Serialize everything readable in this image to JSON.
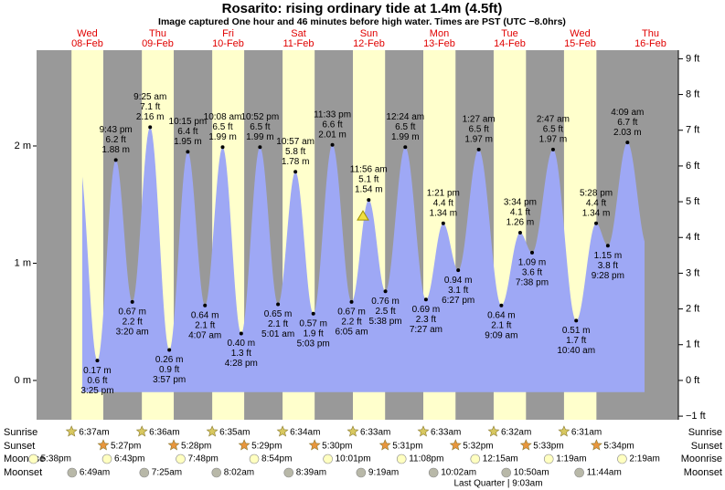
{
  "chart_data": {
    "type": "tide",
    "title": "Rosarito: rising  ordinary tide at 1.4m (4.5ft)",
    "subtitle": "Image captured One hour and 46 minutes before high water. Times are PST (UTC −8.0hrs)",
    "current_m": 1.4,
    "ylim": [
      -0.335,
      2.817
    ],
    "yticks": [
      {
        "value": 0,
        "label": "0 m"
      },
      {
        "value": 1,
        "label": "1 m"
      },
      {
        "value": 2,
        "label": "2 m"
      }
    ],
    "y2lim": [
      -1.1,
      9.24
    ],
    "y2ticks": [
      {
        "value": -1,
        "label": "−1 ft"
      },
      {
        "value": 0,
        "label": "0 ft"
      },
      {
        "value": 1,
        "label": "1 ft"
      },
      {
        "value": 2,
        "label": "2 ft"
      },
      {
        "value": 3,
        "label": "3 ft"
      },
      {
        "value": 4,
        "label": "4 ft"
      },
      {
        "value": 5,
        "label": "5 ft"
      },
      {
        "value": 6,
        "label": "6 ft"
      },
      {
        "value": 7,
        "label": "7 ft"
      },
      {
        "value": 8,
        "label": "8 ft"
      },
      {
        "value": 9,
        "label": "9 ft"
      }
    ],
    "days": [
      {
        "weekday": "Wed",
        "date": "08-Feb",
        "tides": [
          {
            "time": "3:25 pm",
            "height_m": 0.17,
            "label_m": "0.17 m",
            "label_ft": "0.6 ft",
            "kind": "low"
          },
          {
            "time": "9:43 pm",
            "height_m": 1.88,
            "label_m": "1.88 m",
            "label_ft": "6.2 ft",
            "kind": "high"
          }
        ]
      },
      {
        "weekday": "Thu",
        "date": "09-Feb",
        "tides": [
          {
            "time": "3:20 am",
            "height_m": 0.67,
            "label_m": "0.67 m",
            "label_ft": "2.2 ft",
            "kind": "low"
          },
          {
            "time": "9:25 am",
            "height_m": 2.16,
            "label_m": "2.16 m",
            "label_ft": "7.1 ft",
            "kind": "high"
          },
          {
            "time": "3:57 pm",
            "height_m": 0.26,
            "label_m": "0.26 m",
            "label_ft": "0.9 ft",
            "kind": "low"
          },
          {
            "time": "10:15 pm",
            "height_m": 1.95,
            "label_m": "1.95 m",
            "label_ft": "6.4 ft",
            "kind": "high"
          }
        ]
      },
      {
        "weekday": "Fri",
        "date": "10-Feb",
        "tides": [
          {
            "time": "4:07 am",
            "height_m": 0.64,
            "label_m": "0.64 m",
            "label_ft": "2.1 ft",
            "kind": "low"
          },
          {
            "time": "10:08 am",
            "height_m": 1.99,
            "label_m": "1.99 m",
            "label_ft": "6.5 ft",
            "kind": "high"
          },
          {
            "time": "4:28 pm",
            "height_m": 0.4,
            "label_m": "0.40 m",
            "label_ft": "1.3 ft",
            "kind": "low"
          },
          {
            "time": "10:52 pm",
            "height_m": 1.99,
            "label_m": "1.99 m",
            "label_ft": "6.5 ft",
            "kind": "high"
          }
        ]
      },
      {
        "weekday": "Sat",
        "date": "11-Feb",
        "tides": [
          {
            "time": "5:01 am",
            "height_m": 0.65,
            "label_m": "0.65 m",
            "label_ft": "2.1 ft",
            "kind": "low"
          },
          {
            "time": "10:57 am",
            "height_m": 1.78,
            "label_m": "1.78 m",
            "label_ft": "5.8 ft",
            "kind": "high"
          },
          {
            "time": "5:03 pm",
            "height_m": 0.57,
            "label_m": "0.57 m",
            "label_ft": "1.9 ft",
            "kind": "low"
          },
          {
            "time": "11:33 pm",
            "height_m": 2.01,
            "label_m": "2.01 m",
            "label_ft": "6.6 ft",
            "kind": "high"
          }
        ]
      },
      {
        "weekday": "Sun",
        "date": "12-Feb",
        "tides": [
          {
            "time": "6:05 am",
            "height_m": 0.67,
            "label_m": "0.67 m",
            "label_ft": "2.2 ft",
            "kind": "low"
          },
          {
            "time": "11:56 am",
            "height_m": 1.54,
            "label_m": "1.54 m",
            "label_ft": "5.1 ft",
            "kind": "high"
          },
          {
            "time": "5:38 pm",
            "height_m": 0.76,
            "label_m": "0.76 m",
            "label_ft": "2.5 ft",
            "kind": "low"
          }
        ]
      },
      {
        "weekday": "Mon",
        "date": "13-Feb",
        "tides": [
          {
            "time": "12:24 am",
            "height_m": 1.99,
            "label_m": "1.99 m",
            "label_ft": "6.5 ft",
            "kind": "high"
          },
          {
            "time": "7:27 am",
            "height_m": 0.69,
            "label_m": "0.69 m",
            "label_ft": "2.3 ft",
            "kind": "low"
          },
          {
            "time": "1:21 pm",
            "height_m": 1.34,
            "label_m": "1.34 m",
            "label_ft": "4.4 ft",
            "kind": "high"
          },
          {
            "time": "6:27 pm",
            "height_m": 0.94,
            "label_m": "0.94 m",
            "label_ft": "3.1 ft",
            "kind": "low"
          }
        ]
      },
      {
        "weekday": "Tue",
        "date": "14-Feb",
        "tides": [
          {
            "time": "1:27 am",
            "height_m": 1.97,
            "label_m": "1.97 m",
            "label_ft": "6.5 ft",
            "kind": "high"
          },
          {
            "time": "9:09 am",
            "height_m": 0.64,
            "label_m": "0.64 m",
            "label_ft": "2.1 ft",
            "kind": "low"
          },
          {
            "time": "3:34 pm",
            "height_m": 1.26,
            "label_m": "1.26 m",
            "label_ft": "4.1 ft",
            "kind": "high"
          },
          {
            "time": "7:38 pm",
            "height_m": 1.09,
            "label_m": "1.09 m",
            "label_ft": "3.6 ft",
            "kind": "low"
          }
        ]
      },
      {
        "weekday": "Wed",
        "date": "15-Feb",
        "tides": [
          {
            "time": "2:47 am",
            "height_m": 1.97,
            "label_m": "1.97 m",
            "label_ft": "6.5 ft",
            "kind": "high"
          },
          {
            "time": "10:40 am",
            "height_m": 0.51,
            "label_m": "0.51 m",
            "label_ft": "1.7 ft",
            "kind": "low"
          },
          {
            "time": "5:28 pm",
            "height_m": 1.34,
            "label_m": "1.34 m",
            "label_ft": "4.4 ft",
            "kind": "high"
          },
          {
            "time": "9:28 pm",
            "height_m": 1.15,
            "label_m": "1.15 m",
            "label_ft": "3.8 ft",
            "kind": "low"
          }
        ]
      },
      {
        "weekday": "Thu",
        "date": "16-Feb",
        "tides": [
          {
            "time": "4:09 am",
            "height_m": 2.03,
            "label_m": "2.03 m",
            "label_ft": "6.7 ft",
            "kind": "high"
          }
        ]
      }
    ],
    "sunrise": {
      "label": "Sunrise",
      "times": [
        "6:37am",
        "6:36am",
        "6:35am",
        "6:34am",
        "6:33am",
        "6:33am",
        "6:32am",
        "6:31am"
      ]
    },
    "sunset": {
      "label": "Sunset",
      "times": [
        "5:27pm",
        "5:28pm",
        "5:29pm",
        "5:30pm",
        "5:31pm",
        "5:32pm",
        "5:33pm",
        "5:34pm"
      ]
    },
    "moonrise": {
      "label": "Moonrise",
      "times": [
        "5:38pm",
        "6:43pm",
        "7:48pm",
        "8:54pm",
        "10:01pm",
        "11:08pm",
        null,
        "12:15am",
        "1:19am",
        "2:19am"
      ]
    },
    "moonset": {
      "label": "Moonset",
      "times": [
        "6:49am",
        "7:25am",
        "8:02am",
        "8:39am",
        "9:19am",
        "10:02am",
        "10:50am",
        "11:44am"
      ]
    },
    "moon_phase": "Last Quarter | 9:03am"
  }
}
